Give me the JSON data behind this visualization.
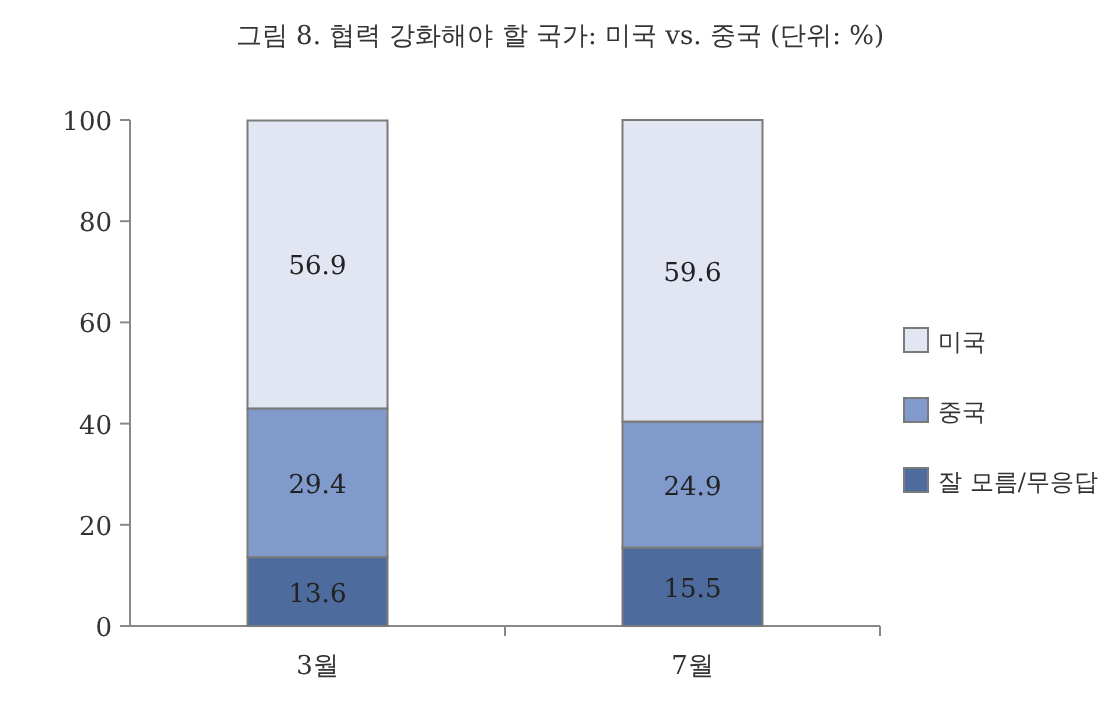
{
  "chart_data": {
    "type": "bar",
    "title": "그림 8. 협력 강화해야 할 국가: 미국 vs. 중국 (단위: %)",
    "categories": [
      "3월",
      "7월"
    ],
    "series": [
      {
        "name": "잘 모름/무응답",
        "color": "#4d6b9c",
        "values": [
          13.6,
          15.5
        ]
      },
      {
        "name": "중국",
        "color": "#7f9acb",
        "values": [
          29.4,
          24.9
        ]
      },
      {
        "name": "미국",
        "color": "#e1e6f2",
        "values": [
          56.9,
          59.6
        ]
      }
    ],
    "stacked": true,
    "ylim": [
      0,
      100
    ],
    "yticks": [
      0,
      20,
      40,
      60,
      80,
      100
    ],
    "data_labels": true,
    "legend": "right"
  }
}
